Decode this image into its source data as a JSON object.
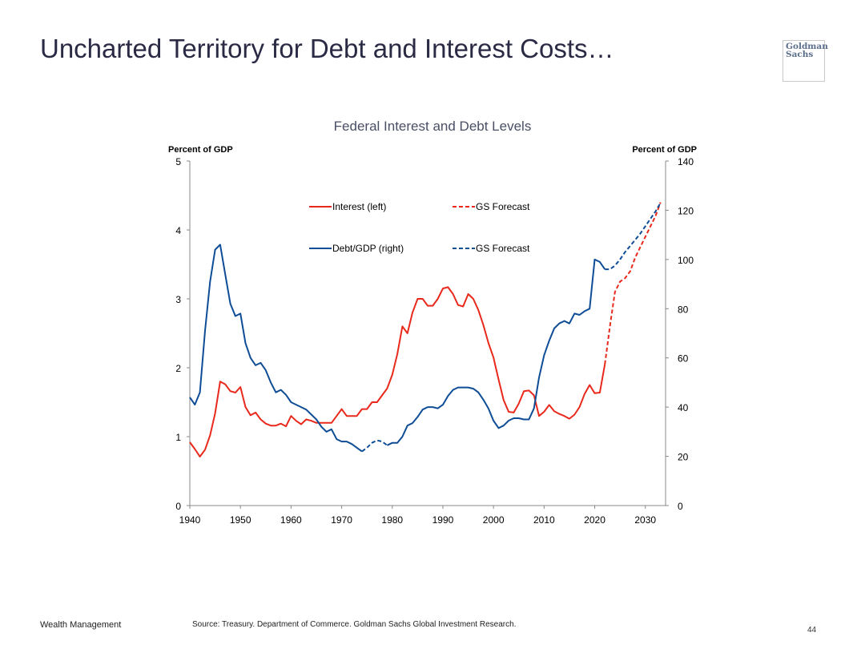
{
  "slide": {
    "title": "Uncharted Territory for Debt and Interest Costs…",
    "logo_line1": "Goldman",
    "logo_line2": "Sachs",
    "footer_left": "Wealth Management",
    "source": "Source: Treasury. Department of Commerce. Goldman Sachs Global Investment Research.",
    "page_number": "44"
  },
  "chart_data": {
    "type": "line",
    "title": "Federal Interest and Debt Levels",
    "ylabel_left": "Percent of GDP",
    "ylabel_right": "Percent of GDP",
    "xlim": [
      1940,
      2034
    ],
    "x_ticks": [
      1940,
      1950,
      1960,
      1970,
      1980,
      1990,
      2000,
      2010,
      2020,
      2030
    ],
    "ylim_left": [
      0,
      5
    ],
    "y_ticks_left": [
      0,
      1,
      2,
      3,
      4,
      5
    ],
    "ylim_right": [
      0,
      140
    ],
    "y_ticks_right": [
      0,
      20,
      40,
      60,
      80,
      100,
      120,
      140
    ],
    "grid": false,
    "legend_position": "top-center",
    "series": [
      {
        "name": "Interest (left)",
        "axis": "left",
        "color": "#e8291c",
        "dash": "solid",
        "x": [
          1940,
          1941,
          1942,
          1943,
          1944,
          1945,
          1946,
          1947,
          1948,
          1949,
          1950,
          1951,
          1952,
          1953,
          1954,
          1955,
          1956,
          1957,
          1958,
          1959,
          1960,
          1961,
          1962,
          1963,
          1964,
          1965,
          1966,
          1967,
          1968,
          1969,
          1970,
          1971,
          1972,
          1973,
          1974,
          1975,
          1976,
          1977,
          1978,
          1979,
          1980,
          1981,
          1982,
          1983,
          1984,
          1985,
          1986,
          1987,
          1988,
          1989,
          1990,
          1991,
          1992,
          1993,
          1994,
          1995,
          1996,
          1997,
          1998,
          1999,
          2000,
          2001,
          2002,
          2003,
          2004,
          2005,
          2006,
          2007,
          2008,
          2009,
          2010,
          2011,
          2012,
          2013,
          2014,
          2015,
          2016,
          2017,
          2018,
          2019,
          2020,
          2021,
          2022
        ],
        "y": [
          0.92,
          0.82,
          0.71,
          0.81,
          1.02,
          1.34,
          1.8,
          1.76,
          1.66,
          1.64,
          1.72,
          1.43,
          1.31,
          1.35,
          1.25,
          1.19,
          1.16,
          1.16,
          1.19,
          1.15,
          1.3,
          1.23,
          1.18,
          1.25,
          1.23,
          1.2,
          1.2,
          1.2,
          1.2,
          1.3,
          1.4,
          1.3,
          1.3,
          1.3,
          1.4,
          1.4,
          1.5,
          1.5,
          1.6,
          1.7,
          1.9,
          2.2,
          2.6,
          2.5,
          2.8,
          3.0,
          3.0,
          2.9,
          2.9,
          3.0,
          3.15,
          3.17,
          3.07,
          2.91,
          2.89,
          3.07,
          3.0,
          2.84,
          2.62,
          2.36,
          2.15,
          1.83,
          1.53,
          1.36,
          1.35,
          1.48,
          1.66,
          1.67,
          1.6,
          1.3,
          1.36,
          1.46,
          1.37,
          1.33,
          1.3,
          1.26,
          1.32,
          1.43,
          1.62,
          1.75,
          1.63,
          1.64,
          2.05
        ]
      },
      {
        "name": "GS Forecast",
        "axis": "left",
        "color": "#e8291c",
        "dash": "dashed",
        "x": [
          2022,
          2023,
          2024,
          2025,
          2026,
          2027,
          2028,
          2029,
          2030,
          2031,
          2032,
          2033
        ],
        "y": [
          2.05,
          2.6,
          3.1,
          3.25,
          3.3,
          3.4,
          3.6,
          3.75,
          3.9,
          4.05,
          4.2,
          4.4
        ]
      },
      {
        "name": "Debt/GDP (right)",
        "axis": "right",
        "color": "#0e4d96",
        "dash": "solid",
        "x": [
          1940,
          1941,
          1942,
          1943,
          1944,
          1945,
          1946,
          1947,
          1948,
          1949,
          1950,
          1951,
          1952,
          1953,
          1954,
          1955,
          1956,
          1957,
          1958,
          1959,
          1960,
          1961,
          1962,
          1963,
          1964,
          1965,
          1966,
          1967,
          1968,
          1969,
          1970,
          1971,
          1972,
          1973,
          1974
        ],
        "y": [
          44,
          41,
          46,
          71,
          91,
          104,
          106,
          94,
          82,
          77,
          78,
          66,
          60,
          57,
          58,
          55,
          50,
          46,
          47,
          45,
          42,
          41,
          40,
          39,
          37,
          35,
          32,
          30,
          31,
          27,
          26,
          26,
          25,
          23.5,
          22
        ]
      },
      {
        "name": "GS Forecast",
        "axis": "right",
        "color": "#0e4d96",
        "dash": "dashed",
        "x": [
          1974,
          1975,
          1976,
          1977,
          1978,
          1979
        ],
        "y": [
          22,
          23.5,
          25.5,
          26.5,
          26,
          24.5
        ]
      },
      {
        "name": "Debt/GDP (right)",
        "axis": "right",
        "color": "#0e4d96",
        "dash": "solid",
        "x": [
          1979,
          1980,
          1981,
          1982,
          1983,
          1984,
          1985,
          1986,
          1987,
          1988,
          1989,
          1990,
          1991,
          1992,
          1993,
          1994,
          1995,
          1996,
          1997,
          1998,
          1999,
          2000,
          2001,
          2002,
          2003,
          2004,
          2005,
          2006,
          2007,
          2008,
          2009,
          2010,
          2011,
          2012,
          2013,
          2014,
          2015,
          2016,
          2017,
          2018,
          2019,
          2020,
          2021,
          2022
        ],
        "y": [
          24.5,
          25.5,
          25.5,
          28,
          32.5,
          33.5,
          36,
          39,
          40,
          40,
          39.5,
          41,
          44.5,
          47,
          48,
          48,
          48,
          47.5,
          46,
          43,
          39.5,
          34.5,
          31.5,
          32.5,
          34.5,
          35.5,
          35.5,
          35,
          35,
          39.5,
          52,
          61,
          67,
          72,
          74,
          75,
          74,
          78,
          77.5,
          79,
          80,
          100,
          99,
          96
        ]
      },
      {
        "name": "GS Forecast",
        "axis": "right",
        "color": "#0e4d96",
        "dash": "dashed",
        "x": [
          2022,
          2023,
          2024,
          2025,
          2026,
          2027,
          2028,
          2029,
          2030,
          2031,
          2032,
          2033
        ],
        "y": [
          96,
          96,
          97.5,
          100,
          103,
          105.5,
          108,
          110.5,
          113.5,
          116.5,
          119.5,
          123
        ]
      }
    ],
    "legend": [
      {
        "label": "Interest (left)",
        "color": "#e8291c",
        "dash": "solid"
      },
      {
        "label": "GS Forecast",
        "color": "#e8291c",
        "dash": "dashed"
      },
      {
        "label": "Debt/GDP (right)",
        "color": "#0e4d96",
        "dash": "solid"
      },
      {
        "label": "GS Forecast",
        "color": "#0e4d96",
        "dash": "dashed"
      }
    ]
  }
}
